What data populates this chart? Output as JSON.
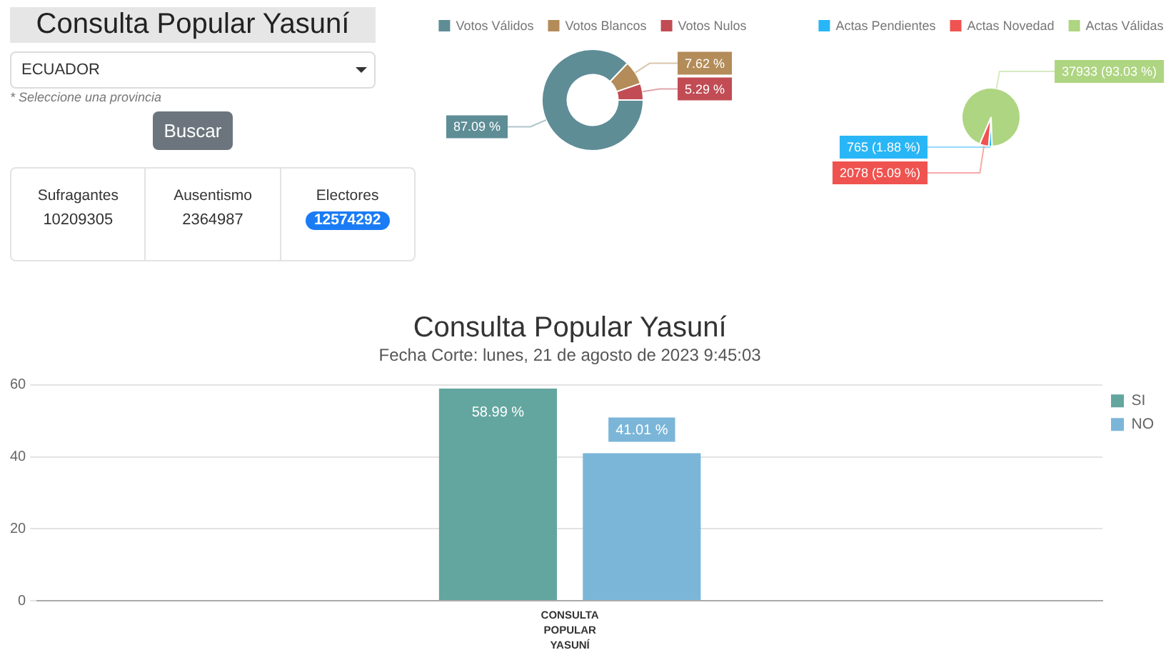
{
  "chart_data": [
    {
      "type": "other",
      "title": "Consulta Popular Yasuní",
      "annotations": [
        "ECUADOR",
        "* Seleccione una provincia",
        "Buscar",
        "Sufragantes",
        "10209305",
        "Ausentismo",
        "2364987",
        "Electores",
        "12574292"
      ]
    },
    {
      "type": "donut",
      "categories": [
        "Votos Válidos",
        "Votos Blancos",
        "Votos Nulos"
      ],
      "values": [
        87.09,
        7.62,
        5.29
      ],
      "colors": [
        "#5e8d96",
        "#b38c59",
        "#c14c54"
      ],
      "value_labels": [
        "87.09 %",
        "7.62 %",
        "5.29 %"
      ],
      "legend": "top"
    },
    {
      "type": "pie",
      "categories": [
        "Actas Pendientes",
        "Actas Novedad",
        "Actas Válidas"
      ],
      "values": [
        765,
        2078,
        37933
      ],
      "colors": [
        "#29b6f6",
        "#ef5350",
        "#aed581"
      ],
      "value_labels": [
        "765 (1.88 %)",
        "2078 (5.09 %)",
        "37933 (93.03 %)"
      ],
      "legend": "top"
    },
    {
      "type": "bar",
      "title": "Consulta Popular Yasuní",
      "subtitle": "Fecha Corte: lunes, 21 de agosto de 2023 9:45:03",
      "categories": [
        "CONSULTA POPULAR YASUNÍ"
      ],
      "series": [
        {
          "name": "SI",
          "color": "#63a69f",
          "values": [
            58.99
          ],
          "value_labels": [
            "58.99 %"
          ]
        },
        {
          "name": "NO",
          "color": "#7bb6d9",
          "values": [
            41.01
          ],
          "value_labels": [
            "41.01 %"
          ]
        }
      ],
      "ylim": [
        0,
        60
      ],
      "yticks": [
        0,
        20,
        40,
        60
      ],
      "grid": "y",
      "legend": "right"
    }
  ]
}
